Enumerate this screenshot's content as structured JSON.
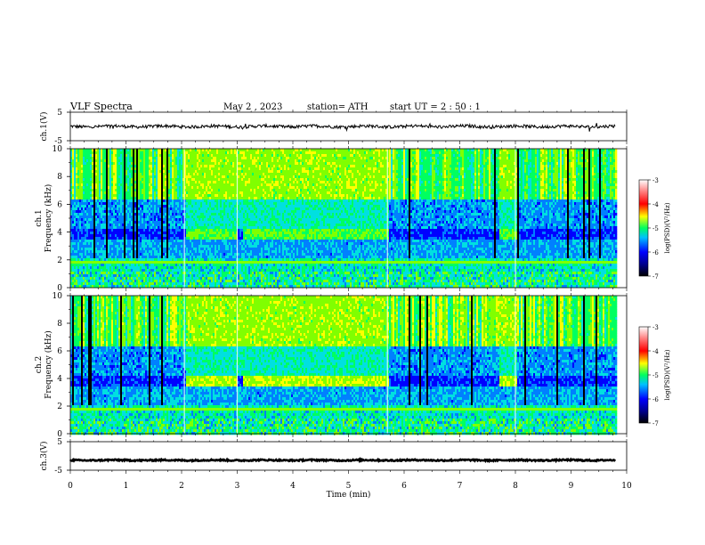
{
  "header": {
    "title": "VLF Spectra",
    "date": "May 2 , 2023",
    "station": "station= ATH",
    "start_ut": "start UT = 2 : 50 : 1"
  },
  "chart_data": [
    {
      "id": "ch1-waveform",
      "type": "line",
      "ylabel": "ch.1(V)",
      "ylim": [
        -5,
        5
      ],
      "yticks": [
        "5",
        "-5"
      ],
      "xlim": [
        0,
        10
      ],
      "description_values": {
        "baseline_v": 0,
        "noise_amplitude_v": 0.6
      }
    },
    {
      "id": "ch1-spectrogram",
      "type": "heatmap",
      "ylabel": "ch.1",
      "ylabel2": "Frequency (kHz)",
      "ylim": [
        0,
        10
      ],
      "yticks": [
        "10",
        "8",
        "6",
        "4",
        "2",
        "0"
      ],
      "xlim": [
        0,
        10
      ],
      "data_end_min": 9.8,
      "colorbar": {
        "label": "log(PSD)(V²/Hz)",
        "range": [
          -7,
          -3
        ],
        "ticks": [
          "-3",
          "-4",
          "-5",
          "-6",
          "-7"
        ]
      },
      "enhanced_band": {
        "freq_khz": [
          3.7,
          4.3
        ],
        "segments_min": [
          [
            2.05,
            3.0
          ],
          [
            3.1,
            5.7
          ],
          [
            7.7,
            8.0
          ]
        ]
      }
    },
    {
      "id": "ch2-spectrogram",
      "type": "heatmap",
      "ylabel": "ch.2",
      "ylabel2": "Frequency (kHz)",
      "ylim": [
        0,
        10
      ],
      "yticks": [
        "10",
        "8",
        "6",
        "4",
        "2",
        "0"
      ],
      "xlim": [
        0,
        10
      ],
      "data_end_min": 9.8,
      "colorbar": {
        "label": "log(PSD)(V²/Hz)",
        "range": [
          -7,
          -3
        ],
        "ticks": [
          "-3",
          "-4",
          "-5",
          "-6",
          "-7"
        ]
      },
      "enhanced_band": {
        "freq_khz": [
          3.7,
          4.3
        ],
        "segments_min": [
          [
            2.05,
            3.0
          ],
          [
            3.1,
            5.7
          ],
          [
            7.7,
            8.0
          ]
        ]
      }
    },
    {
      "id": "ch3-waveform",
      "type": "line",
      "ylabel": "ch.3(V)",
      "ylim": [
        -5,
        5
      ],
      "yticks": [
        "5",
        "-5"
      ],
      "xlim": [
        0,
        10
      ],
      "xlabel": "Time (min)",
      "xticks": [
        "0",
        "1",
        "2",
        "3",
        "4",
        "5",
        "6",
        "7",
        "8",
        "9",
        "10"
      ],
      "description_values": {
        "baseline_v": -1.5,
        "noise_amplitude_v": 0.3
      }
    }
  ],
  "palette": [
    "#00008a",
    "#0000ff",
    "#0080ff",
    "#00e0e0",
    "#00ff60",
    "#80ff00",
    "#ffff00",
    "#ff8000",
    "#ff0000",
    "#ffffff"
  ]
}
